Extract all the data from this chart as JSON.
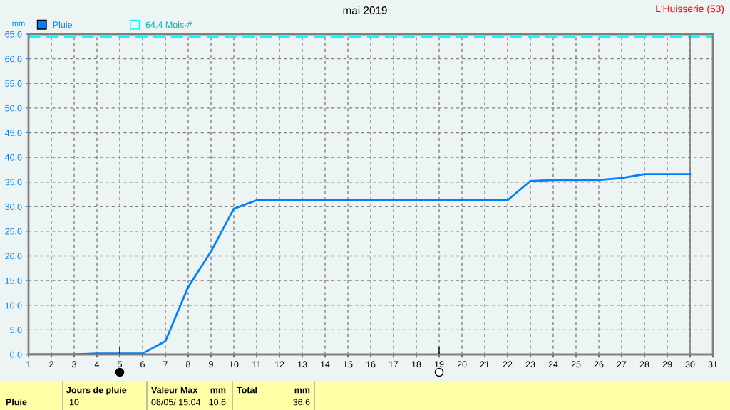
{
  "chart_data": {
    "type": "line",
    "title": "mai 2019",
    "ylabel": "mm",
    "x": [
      1,
      2,
      3,
      4,
      5,
      6,
      7,
      8,
      9,
      10,
      11,
      12,
      13,
      14,
      15,
      16,
      17,
      18,
      19,
      20,
      21,
      22,
      23,
      24,
      25,
      26,
      27,
      28,
      29,
      30
    ],
    "series": [
      {
        "name": "Pluie",
        "color": "#0080ff",
        "values": [
          0,
          0,
          0,
          0.2,
          0.2,
          0.2,
          2.7,
          13.7,
          20.9,
          29.6,
          31.3,
          31.3,
          31.3,
          31.3,
          31.3,
          31.3,
          31.3,
          31.3,
          31.3,
          31.3,
          31.3,
          31.3,
          35.2,
          35.4,
          35.4,
          35.4,
          35.8,
          36.6,
          36.6,
          36.6
        ]
      }
    ],
    "xlim": [
      1,
      31
    ],
    "xticks": [
      1,
      2,
      3,
      4,
      5,
      6,
      7,
      8,
      9,
      10,
      11,
      12,
      13,
      14,
      15,
      16,
      17,
      18,
      19,
      20,
      21,
      22,
      23,
      24,
      25,
      26,
      27,
      28,
      29,
      30,
      31
    ],
    "ylim": [
      0,
      65
    ],
    "yticks": [
      {
        "value": 0,
        "label": "0.0"
      },
      {
        "value": 5,
        "label": "5.0"
      },
      {
        "value": 10,
        "label": "10.0"
      },
      {
        "value": 15,
        "label": "15.0"
      },
      {
        "value": 20,
        "label": "20.0"
      },
      {
        "value": 25,
        "label": "25.0"
      },
      {
        "value": 30,
        "label": "30.0"
      },
      {
        "value": 35,
        "label": "35.0"
      },
      {
        "value": 40,
        "label": "40.0"
      },
      {
        "value": 45,
        "label": "45.0"
      },
      {
        "value": 50,
        "label": "50.0"
      },
      {
        "value": 55,
        "label": "55.0"
      },
      {
        "value": 60,
        "label": "60.0"
      },
      {
        "value": 65,
        "label": "65.0"
      }
    ],
    "ref_lines": [
      {
        "axis": "y",
        "value": 64.4,
        "label": "64.4 Mois-#",
        "color": "#00ffff",
        "line_style": "dashed"
      },
      {
        "axis": "x",
        "value": 30,
        "color": "#808080",
        "line_style": "solid"
      }
    ],
    "grid": true,
    "legend": "top left",
    "marker": "none",
    "line_style": "solid",
    "annotations": [
      "L'Huisserie (53)",
      "Pluie",
      "Jours de pluie",
      "10",
      "Valeur Max",
      "mm",
      "08/05/ 15:04",
      "10.6",
      "Total",
      "mm",
      "36.6"
    ]
  }
}
